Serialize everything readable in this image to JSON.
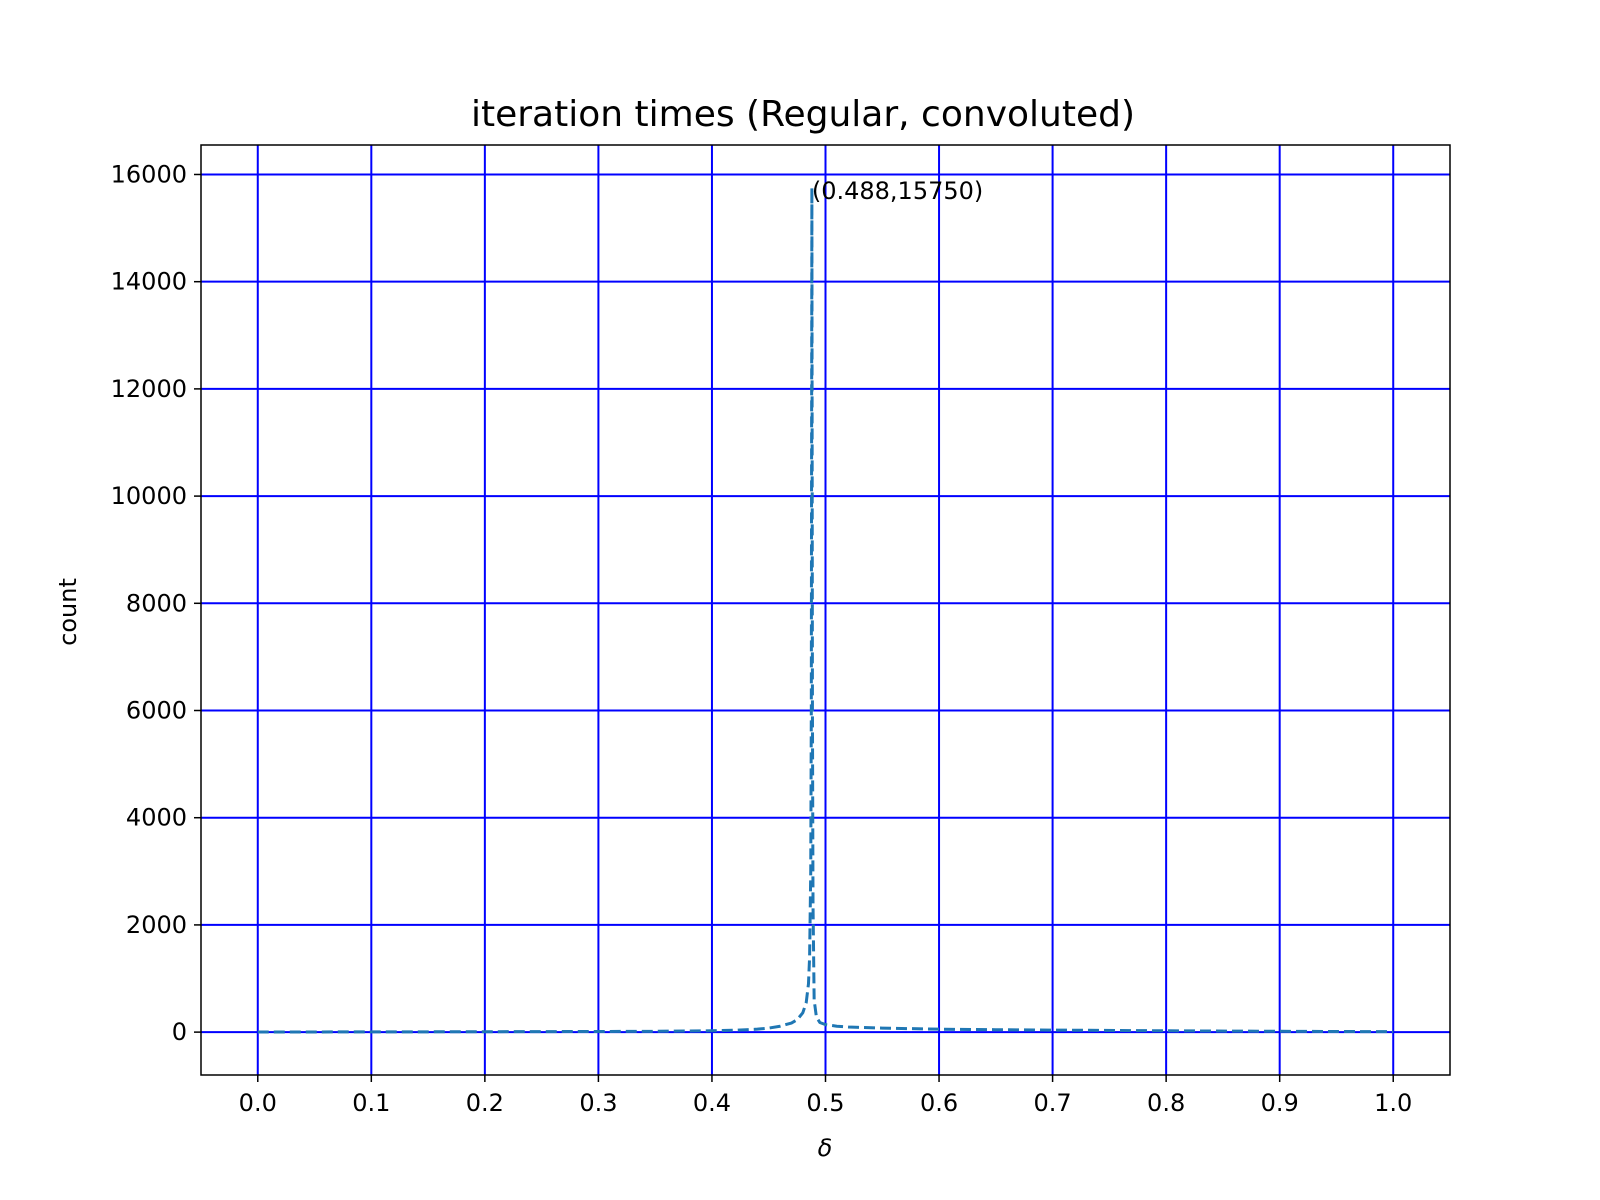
{
  "chart_data": {
    "type": "line",
    "title": "iteration times (Regular, convoluted)",
    "xlabel": "δ",
    "ylabel": "count",
    "xlim": [
      -0.05,
      1.05
    ],
    "ylim": [
      -800,
      16550
    ],
    "x_ticks": [
      "0.0",
      "0.1",
      "0.2",
      "0.3",
      "0.4",
      "0.5",
      "0.6",
      "0.7",
      "0.8",
      "0.9",
      "1.0"
    ],
    "y_ticks": [
      "0",
      "2000",
      "4000",
      "6000",
      "8000",
      "10000",
      "12000",
      "14000",
      "16000"
    ],
    "grid": true,
    "grid_color": "#0000ff",
    "line_color": "#1f77b4",
    "line_style": "dashed",
    "series": [
      {
        "x": [
          0.0,
          0.1,
          0.2,
          0.3,
          0.35,
          0.4,
          0.42,
          0.44,
          0.45,
          0.46,
          0.47,
          0.475,
          0.48,
          0.483,
          0.485,
          0.486,
          0.487,
          0.4875,
          0.488,
          0.4885,
          0.489,
          0.49,
          0.492,
          0.495,
          0.5,
          0.51,
          0.52,
          0.55,
          0.6,
          0.65,
          0.7,
          0.8,
          0.9,
          1.0
        ],
        "y": [
          2,
          4,
          7,
          12,
          15,
          25,
          35,
          55,
          75,
          110,
          170,
          230,
          360,
          550,
          900,
          1400,
          3000,
          6000,
          15750,
          6000,
          2400,
          600,
          280,
          180,
          140,
          110,
          95,
          75,
          55,
          45,
          38,
          25,
          15,
          8
        ]
      }
    ],
    "annotations": [
      {
        "text": "(0.488,15750)",
        "x": 0.488,
        "y": 15750
      }
    ]
  }
}
